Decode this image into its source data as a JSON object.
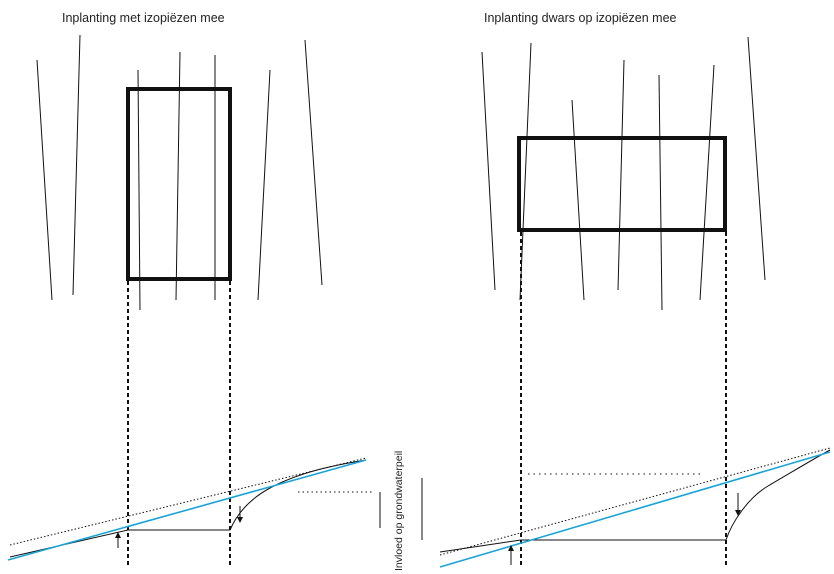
{
  "titles": {
    "left": "Inplanting met izopiëzen mee",
    "right": "Inplanting dwars op izopiëzen mee"
  },
  "side_label": "Invloed op grondwaterpeil",
  "colors": {
    "line": "#111111",
    "groundwater": "#1aa3d9",
    "background": "#ffffff"
  }
}
